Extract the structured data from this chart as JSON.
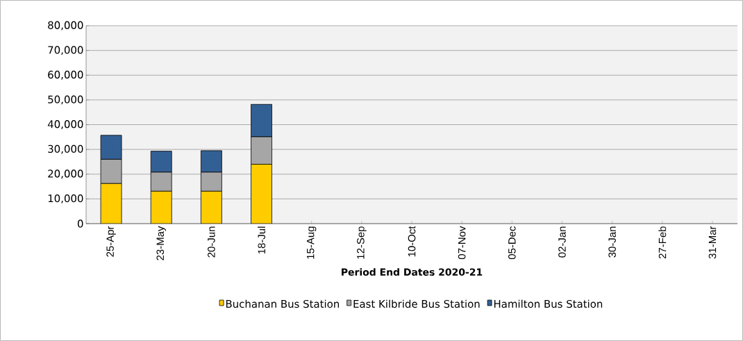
{
  "chart_data": {
    "type": "bar",
    "stacked": true,
    "xlabel": "Period End Dates 2020-21",
    "categories": [
      "25-Apr",
      "23-May",
      "20-Jun",
      "18-Jul",
      "15-Aug",
      "12-Sep",
      "10-Oct",
      "07-Nov",
      "05-Dec",
      "02-Jan",
      "30-Jan",
      "27-Feb",
      "31-Mar"
    ],
    "series": [
      {
        "name": "Buchanan Bus Station",
        "color": "#ffcc00",
        "values": [
          16200,
          13100,
          13100,
          24000,
          null,
          null,
          null,
          null,
          null,
          null,
          null,
          null,
          null
        ]
      },
      {
        "name": "East Kilbride Bus Station",
        "color": "#a6a6a6",
        "values": [
          9800,
          7700,
          7700,
          11100,
          null,
          null,
          null,
          null,
          null,
          null,
          null,
          null,
          null
        ]
      },
      {
        "name": "Hamilton Bus Station",
        "color": "#336094",
        "values": [
          9700,
          8500,
          8700,
          13100,
          null,
          null,
          null,
          null,
          null,
          null,
          null,
          null,
          null
        ]
      }
    ],
    "ylim": [
      0,
      80000
    ],
    "yticks": [
      {
        "value": 0,
        "label": "0"
      },
      {
        "value": 10000,
        "label": "10,000"
      },
      {
        "value": 20000,
        "label": "20,000"
      },
      {
        "value": 30000,
        "label": "30,000"
      },
      {
        "value": 40000,
        "label": "40,000"
      },
      {
        "value": 50000,
        "label": "50,000"
      },
      {
        "value": 60000,
        "label": "60,000"
      },
      {
        "value": 70000,
        "label": "70,000"
      },
      {
        "value": 80000,
        "label": "80,000"
      }
    ],
    "grid": "y",
    "legend": "bottom"
  }
}
